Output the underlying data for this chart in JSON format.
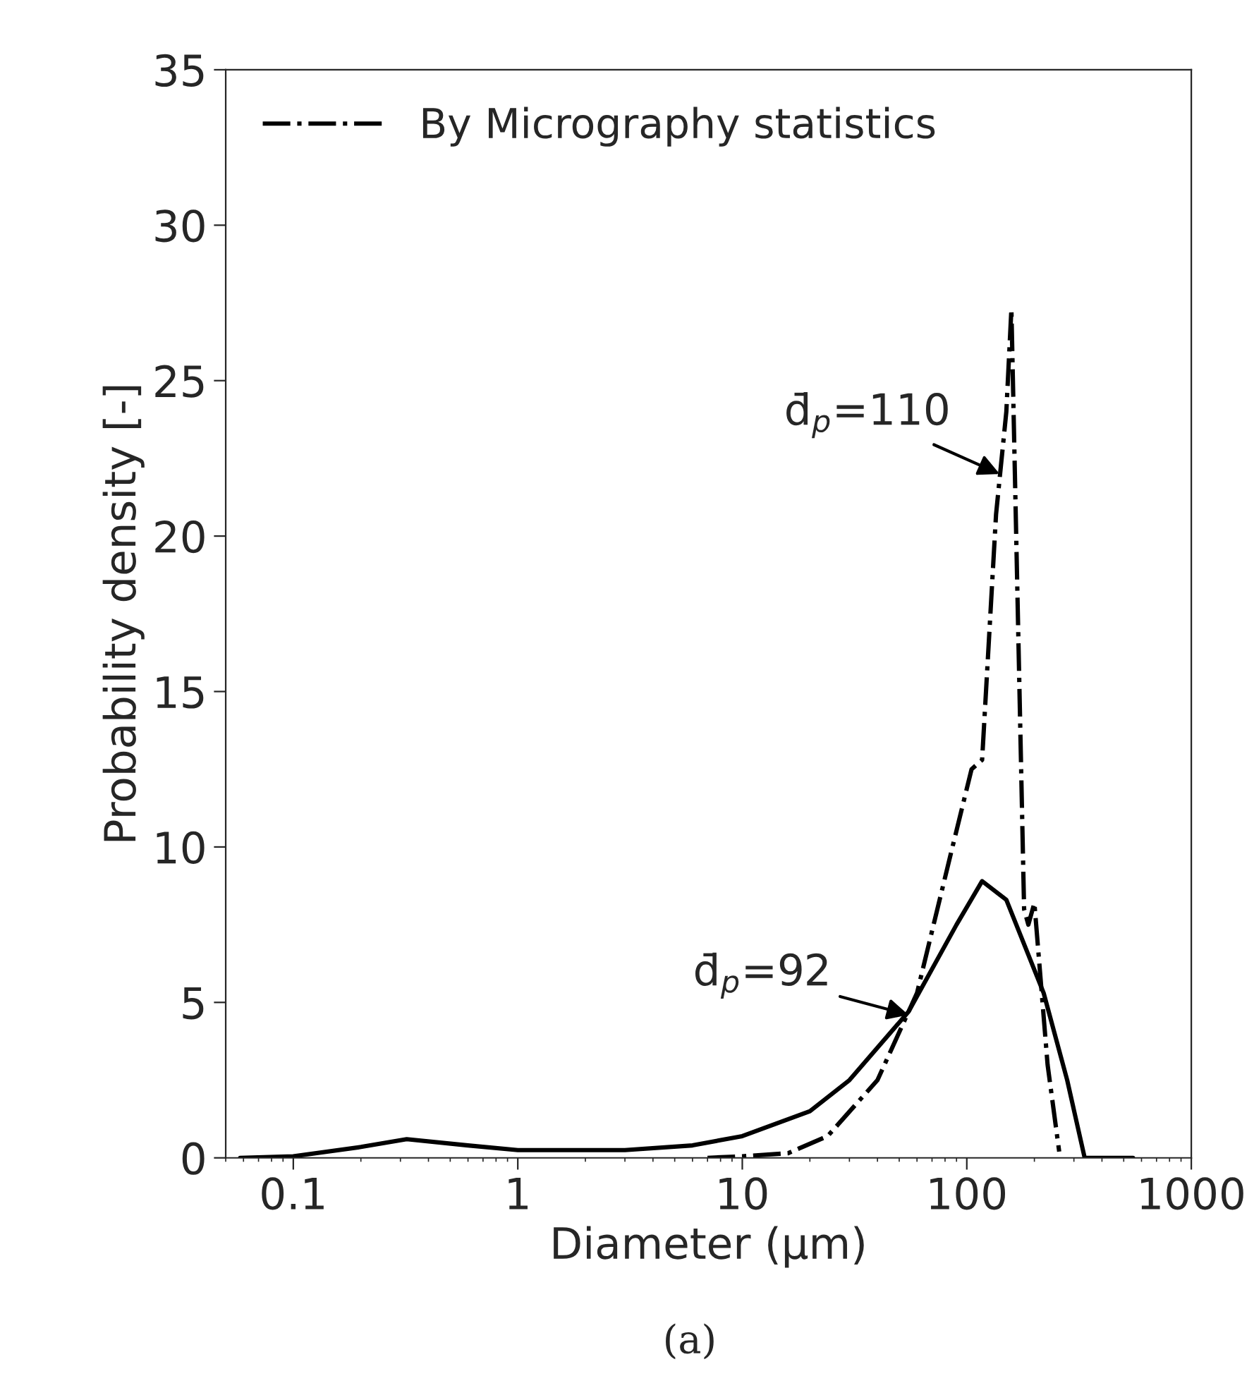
{
  "chart_data": {
    "type": "line",
    "xlabel": "Diameter (μm)",
    "ylabel": "Probability density [-]",
    "log": "x",
    "xlim": [
      0.05,
      1000
    ],
    "ylim": [
      0,
      35
    ],
    "xticks": [
      0.1,
      1,
      10,
      100,
      1000
    ],
    "yticks": [
      0,
      5,
      10,
      15,
      20,
      25,
      30,
      35
    ],
    "grid": false,
    "legend": "top left",
    "marker": "none",
    "series": [
      {
        "color": "#000000",
        "line_style": "solid",
        "x": [
          0.058,
          0.1,
          0.2,
          0.32,
          0.6,
          1,
          3,
          6,
          10,
          20,
          30,
          55,
          90,
          117,
          150,
          220,
          280,
          335,
          550
        ],
        "values": [
          0,
          0.05,
          0.35,
          0.6,
          0.4,
          0.25,
          0.25,
          0.4,
          0.7,
          1.5,
          2.5,
          4.7,
          7.5,
          8.9,
          8.3,
          5.3,
          2.5,
          0,
          0
        ]
      },
      {
        "name": "By Micrography statistics",
        "color": "#000000",
        "line_style": "dashdot",
        "x": [
          7,
          10,
          16,
          24,
          40,
          60,
          85,
          105,
          117,
          135,
          150,
          158,
          180,
          188,
          200,
          229,
          258
        ],
        "values": [
          0,
          0.05,
          0.15,
          0.7,
          2.5,
          5.3,
          9.8,
          12.5,
          12.8,
          20.7,
          24,
          27.3,
          8,
          7.5,
          8.2,
          3,
          0.2
        ]
      }
    ],
    "annotations": [
      {
        "text": "d̄$_{p}$=110",
        "x": 140,
        "y": 22
      },
      {
        "text": "d̄$_{p}$=92",
        "x": 55,
        "y": 4.6
      },
      "(a)"
    ]
  }
}
